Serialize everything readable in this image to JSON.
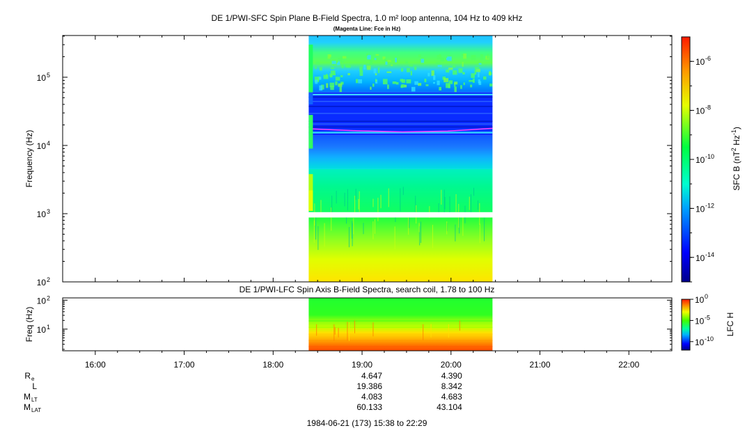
{
  "chart_data": [
    {
      "type": "heatmap",
      "title": "DE 1/PWI-SFC  Spin Plane B-Field Spectra, 1.0 m² loop antenna, 104 Hz to 409 kHz",
      "subtitle": "(Magenta Line: Fce in Hz)",
      "ylabel": "Frequency (Hz)",
      "yscale": "log",
      "ylim": [
        100,
        409000
      ],
      "y_ticks": [
        {
          "value": 100,
          "base": "10",
          "exp": "2"
        },
        {
          "value": 1000,
          "base": "10",
          "exp": "3"
        },
        {
          "value": 10000,
          "base": "10",
          "exp": "4"
        },
        {
          "value": 100000,
          "base": "10",
          "exp": "5"
        }
      ],
      "data_time_range": [
        "18:24",
        "20:28"
      ],
      "fce_line_hz": [
        17500,
        16400,
        15800,
        16200,
        17800
      ],
      "colorbar": {
        "label": "SFC B (nT",
        "label_sup1": "2",
        "label_mid": " Hz",
        "label_sup2": "-1",
        "label_end": ")",
        "scale": "log",
        "range": [
          1e-15,
          1e-05
        ],
        "ticks": [
          {
            "value": 1e-06,
            "base": "10",
            "exp": "-6"
          },
          {
            "value": 1e-08,
            "base": "10",
            "exp": "-8"
          },
          {
            "value": 1e-10,
            "base": "10",
            "exp": "-10"
          },
          {
            "value": 1e-12,
            "base": "10",
            "exp": "-12"
          },
          {
            "value": 1e-14,
            "base": "10",
            "exp": "-14"
          }
        ]
      }
    },
    {
      "type": "heatmap",
      "title": "DE 1/PWI-LFC  Spin Axis B-Field Spectra, search coil, 1.78 to 100 Hz",
      "ylabel": "Freq (Hz)",
      "yscale": "log",
      "ylim": [
        1.78,
        120
      ],
      "y_ticks": [
        {
          "value": 10,
          "base": "10",
          "exp": "1"
        },
        {
          "value": 100,
          "base": "10",
          "exp": "2"
        }
      ],
      "data_time_range": [
        "18:24",
        "20:28"
      ],
      "colorbar": {
        "label": "LFC H",
        "scale": "log",
        "range": [
          1e-12,
          1
        ],
        "ticks": [
          {
            "value": 1,
            "base": "10",
            "exp": "0"
          },
          {
            "value": 1e-05,
            "base": "10",
            "exp": "-5"
          },
          {
            "value": 1e-10,
            "base": "10",
            "exp": "-10"
          }
        ]
      }
    }
  ],
  "time_axis": {
    "ticks": [
      "16:00",
      "17:00",
      "18:00",
      "19:00",
      "20:00",
      "21:00",
      "22:00"
    ]
  },
  "ephemeris": {
    "rows": [
      {
        "label": "R",
        "sub": "e",
        "values": [
          "4.647",
          "4.390"
        ]
      },
      {
        "label": "L",
        "sub": "",
        "values": [
          "19.386",
          "8.342"
        ]
      },
      {
        "label": "M",
        "sub": "LT",
        "values": [
          "4.083",
          "4.683"
        ]
      },
      {
        "label": "M",
        "sub": "LAT",
        "values": [
          "60.133",
          "43.104"
        ]
      }
    ]
  },
  "footer": "1984-06-21 (173) 15:38 to 22:29"
}
